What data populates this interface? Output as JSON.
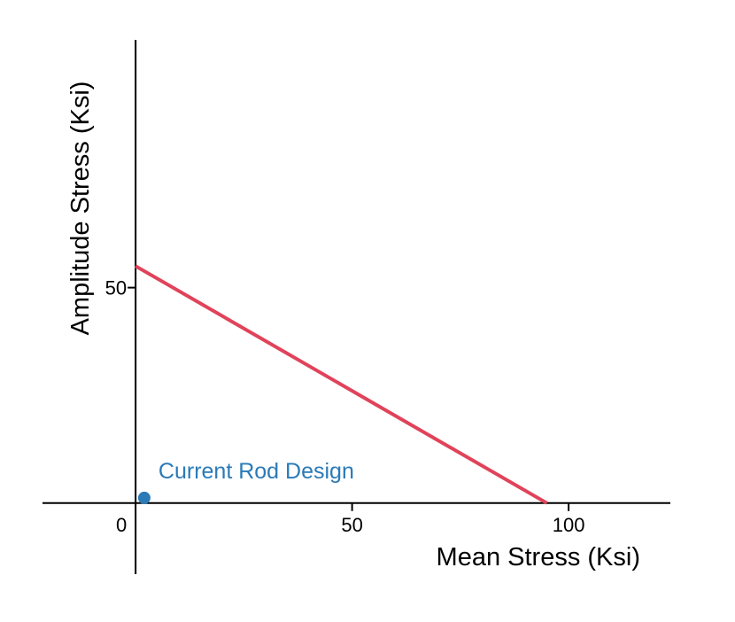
{
  "chart_data": {
    "type": "line",
    "xlabel": "Mean Stress (Ksi)",
    "ylabel": "Amplitude Stress (Ksi)",
    "xlim": [
      -21.5,
      123.5
    ],
    "ylim": [
      -16.5,
      107.5
    ],
    "x_ticks": [
      0,
      50,
      100
    ],
    "x_tick_labels": [
      "0",
      "50",
      "100"
    ],
    "y_ticks": [
      50
    ],
    "y_tick_labels": [
      "50"
    ],
    "grid": false,
    "series": [
      {
        "points": [
          [
            0,
            55
          ],
          [
            95,
            0
          ]
        ],
        "color": "#e0435a"
      }
    ],
    "points": [
      {
        "label": "Current Rod Design",
        "x": 2,
        "y": 1.2,
        "color": "#2a7ab8"
      }
    ]
  }
}
